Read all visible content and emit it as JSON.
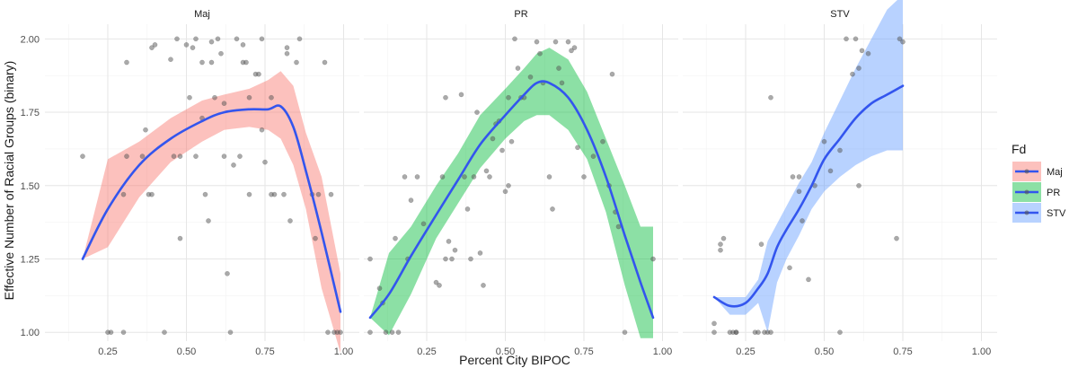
{
  "chart_data": {
    "type": "scatter",
    "xlabel": "Percent City BIPOC",
    "ylabel": "Effective Number of Racial Groups (binary)",
    "xlim": [
      0.05,
      1.05
    ],
    "ylim": [
      0.97,
      2.05
    ],
    "x_ticks": [
      "0.25",
      "0.50",
      "0.75",
      "1.00"
    ],
    "y_ticks": [
      "1.00",
      "1.25",
      "1.50",
      "1.75",
      "2.00"
    ],
    "x_tick_values": [
      0.25,
      0.5,
      0.75,
      1.0
    ],
    "y_tick_values": [
      1.0,
      1.25,
      1.5,
      1.75,
      2.0
    ],
    "grid": true,
    "legend": {
      "title": "Fd",
      "position": "right",
      "entries": [
        {
          "label": "Maj",
          "fill": "#F8766D",
          "line": "#3355EE"
        },
        {
          "label": "PR",
          "fill": "#00BA38",
          "line": "#3355EE"
        },
        {
          "label": "STV",
          "fill": "#619CFF",
          "line": "#3355EE"
        }
      ]
    },
    "point_color": "#555555",
    "smooth_color": "#3355EE",
    "panels": [
      {
        "strip": "Maj",
        "band_color": "#F8766D",
        "smooth": {
          "x": [
            0.17,
            0.25,
            0.35,
            0.45,
            0.55,
            0.62,
            0.7,
            0.76,
            0.8,
            0.84,
            0.88,
            0.93,
            0.99
          ],
          "y": [
            1.25,
            1.42,
            1.57,
            1.66,
            1.72,
            1.75,
            1.76,
            1.76,
            1.77,
            1.7,
            1.55,
            1.34,
            1.07
          ],
          "lower": [
            1.25,
            1.29,
            1.46,
            1.58,
            1.65,
            1.69,
            1.7,
            1.69,
            1.66,
            1.57,
            1.42,
            1.15,
            0.93
          ],
          "upper": [
            1.25,
            1.59,
            1.65,
            1.73,
            1.79,
            1.81,
            1.83,
            1.86,
            1.89,
            1.84,
            1.68,
            1.53,
            1.2
          ]
        },
        "points": [
          [
            0.17,
            1.6
          ],
          [
            0.25,
            1.0
          ],
          [
            0.26,
            1.0
          ],
          [
            0.3,
            1.47
          ],
          [
            0.3,
            1.0
          ],
          [
            0.31,
            1.92
          ],
          [
            0.31,
            1.6
          ],
          [
            0.36,
            1.6
          ],
          [
            0.37,
            1.69
          ],
          [
            0.38,
            1.47
          ],
          [
            0.39,
            1.97
          ],
          [
            0.39,
            1.47
          ],
          [
            0.4,
            1.98
          ],
          [
            0.43,
            1.0
          ],
          [
            0.45,
            1.93
          ],
          [
            0.46,
            1.6
          ],
          [
            0.47,
            2.0
          ],
          [
            0.48,
            1.6
          ],
          [
            0.48,
            1.32
          ],
          [
            0.5,
            1.98
          ],
          [
            0.51,
            1.8
          ],
          [
            0.52,
            1.97
          ],
          [
            0.53,
            1.6
          ],
          [
            0.53,
            2.0
          ],
          [
            0.55,
            1.73
          ],
          [
            0.55,
            1.92
          ],
          [
            0.56,
            1.47
          ],
          [
            0.57,
            1.38
          ],
          [
            0.58,
            1.92
          ],
          [
            0.58,
            1.99
          ],
          [
            0.59,
            1.8
          ],
          [
            0.6,
            2.0
          ],
          [
            0.61,
            1.95
          ],
          [
            0.62,
            1.78
          ],
          [
            0.62,
            1.6
          ],
          [
            0.63,
            1.2
          ],
          [
            0.64,
            1.0
          ],
          [
            0.65,
            1.57
          ],
          [
            0.66,
            2.0
          ],
          [
            0.67,
            1.6
          ],
          [
            0.68,
            1.92
          ],
          [
            0.68,
            1.98
          ],
          [
            0.69,
            1.92
          ],
          [
            0.7,
            1.47
          ],
          [
            0.7,
            1.8
          ],
          [
            0.72,
            1.88
          ],
          [
            0.73,
            1.88
          ],
          [
            0.74,
            1.69
          ],
          [
            0.74,
            2.0
          ],
          [
            0.75,
            1.58
          ],
          [
            0.77,
            1.47
          ],
          [
            0.77,
            1.8
          ],
          [
            0.78,
            1.47
          ],
          [
            0.81,
            1.47
          ],
          [
            0.82,
            1.97
          ],
          [
            0.82,
            1.95
          ],
          [
            0.83,
            1.38
          ],
          [
            0.85,
            1.92
          ],
          [
            0.86,
            2.0
          ],
          [
            0.9,
            1.47
          ],
          [
            0.91,
            1.32
          ],
          [
            0.92,
            1.47
          ],
          [
            0.94,
            1.92
          ],
          [
            0.95,
            1.0
          ],
          [
            0.96,
            1.47
          ],
          [
            0.97,
            1.0
          ],
          [
            0.98,
            1.0
          ],
          [
            0.99,
            1.0
          ]
        ]
      },
      {
        "strip": "PR",
        "band_color": "#00BA38",
        "smooth": {
          "x": [
            0.07,
            0.13,
            0.2,
            0.28,
            0.35,
            0.42,
            0.5,
            0.56,
            0.6,
            0.64,
            0.7,
            0.76,
            0.82,
            0.88,
            0.93,
            0.97
          ],
          "y": [
            1.05,
            1.13,
            1.26,
            1.4,
            1.52,
            1.64,
            1.74,
            1.81,
            1.85,
            1.85,
            1.8,
            1.69,
            1.53,
            1.33,
            1.17,
            1.05
          ],
          "lower": [
            1.05,
            0.99,
            1.13,
            1.32,
            1.44,
            1.56,
            1.66,
            1.72,
            1.74,
            1.74,
            1.69,
            1.59,
            1.41,
            1.16,
            0.98,
            0.98
          ],
          "upper": [
            1.05,
            1.27,
            1.36,
            1.5,
            1.61,
            1.74,
            1.83,
            1.9,
            1.95,
            1.97,
            1.93,
            1.82,
            1.66,
            1.5,
            1.36,
            1.36
          ]
        },
        "points": [
          [
            0.07,
            1.25
          ],
          [
            0.07,
            1.0
          ],
          [
            0.1,
            1.15
          ],
          [
            0.11,
            1.1
          ],
          [
            0.12,
            1.0
          ],
          [
            0.14,
            1.0
          ],
          [
            0.15,
            1.32
          ],
          [
            0.16,
            1.0
          ],
          [
            0.18,
            1.53
          ],
          [
            0.19,
            1.25
          ],
          [
            0.2,
            1.45
          ],
          [
            0.22,
            1.53
          ],
          [
            0.24,
            1.37
          ],
          [
            0.28,
            1.17
          ],
          [
            0.29,
            1.16
          ],
          [
            0.3,
            1.53
          ],
          [
            0.31,
            1.25
          ],
          [
            0.31,
            1.8
          ],
          [
            0.32,
            1.31
          ],
          [
            0.33,
            1.25
          ],
          [
            0.34,
            1.28
          ],
          [
            0.36,
            1.81
          ],
          [
            0.37,
            1.53
          ],
          [
            0.38,
            1.42
          ],
          [
            0.39,
            1.25
          ],
          [
            0.4,
            1.53
          ],
          [
            0.41,
            1.75
          ],
          [
            0.42,
            1.27
          ],
          [
            0.43,
            1.16
          ],
          [
            0.44,
            1.55
          ],
          [
            0.45,
            1.53
          ],
          [
            0.46,
            1.66
          ],
          [
            0.47,
            1.71
          ],
          [
            0.48,
            1.72
          ],
          [
            0.49,
            1.62
          ],
          [
            0.5,
            1.48
          ],
          [
            0.51,
            1.5
          ],
          [
            0.51,
            1.8
          ],
          [
            0.52,
            1.65
          ],
          [
            0.53,
            2.0
          ],
          [
            0.54,
            1.9
          ],
          [
            0.55,
            1.8
          ],
          [
            0.56,
            1.8
          ],
          [
            0.58,
            1.87
          ],
          [
            0.6,
            1.99
          ],
          [
            0.61,
            1.95
          ],
          [
            0.62,
            1.85
          ],
          [
            0.64,
            1.53
          ],
          [
            0.65,
            1.42
          ],
          [
            0.66,
            1.99
          ],
          [
            0.67,
            1.9
          ],
          [
            0.68,
            1.85
          ],
          [
            0.7,
            1.99
          ],
          [
            0.71,
            1.96
          ],
          [
            0.72,
            1.97
          ],
          [
            0.73,
            1.63
          ],
          [
            0.75,
            1.53
          ],
          [
            0.78,
            1.6
          ],
          [
            0.81,
            1.65
          ],
          [
            0.83,
            1.5
          ],
          [
            0.84,
            1.88
          ],
          [
            0.85,
            1.41
          ],
          [
            0.86,
            1.36
          ],
          [
            0.88,
            1.0
          ],
          [
            0.97,
            1.25
          ]
        ]
      },
      {
        "strip": "STV",
        "band_color": "#619CFF",
        "smooth": {
          "x": [
            0.15,
            0.2,
            0.25,
            0.29,
            0.32,
            0.35,
            0.38,
            0.42,
            0.46,
            0.5,
            0.55,
            0.6,
            0.65,
            0.7,
            0.75
          ],
          "y": [
            1.12,
            1.09,
            1.1,
            1.15,
            1.2,
            1.29,
            1.35,
            1.42,
            1.5,
            1.59,
            1.66,
            1.73,
            1.78,
            1.81,
            1.84
          ],
          "upper": [
            1.12,
            1.12,
            1.12,
            1.18,
            1.31,
            1.37,
            1.43,
            1.51,
            1.58,
            1.68,
            1.79,
            1.9,
            2.0,
            2.1,
            2.15
          ],
          "lower": [
            1.12,
            1.06,
            1.06,
            1.1,
            1.0,
            1.17,
            1.25,
            1.33,
            1.42,
            1.48,
            1.53,
            1.57,
            1.6,
            1.62,
            1.62
          ]
        },
        "points": [
          [
            0.15,
            1.0
          ],
          [
            0.15,
            1.03
          ],
          [
            0.17,
            1.3
          ],
          [
            0.17,
            1.28
          ],
          [
            0.18,
            1.32
          ],
          [
            0.2,
            1.0
          ],
          [
            0.21,
            1.0
          ],
          [
            0.22,
            1.0
          ],
          [
            0.22,
            1.0
          ],
          [
            0.28,
            1.0
          ],
          [
            0.29,
            1.0
          ],
          [
            0.3,
            1.3
          ],
          [
            0.31,
            1.0
          ],
          [
            0.32,
            1.0
          ],
          [
            0.33,
            1.8
          ],
          [
            0.33,
            1.0
          ],
          [
            0.39,
            1.22
          ],
          [
            0.4,
            1.53
          ],
          [
            0.42,
            1.48
          ],
          [
            0.42,
            1.53
          ],
          [
            0.43,
            1.38
          ],
          [
            0.45,
            1.18
          ],
          [
            0.47,
            1.5
          ],
          [
            0.5,
            1.65
          ],
          [
            0.52,
            1.55
          ],
          [
            0.55,
            1.0
          ],
          [
            0.55,
            1.62
          ],
          [
            0.57,
            2.0
          ],
          [
            0.59,
            1.88
          ],
          [
            0.6,
            2.0
          ],
          [
            0.61,
            1.9
          ],
          [
            0.61,
            1.5
          ],
          [
            0.62,
            1.96
          ],
          [
            0.64,
            1.95
          ],
          [
            0.73,
            1.32
          ],
          [
            0.74,
            2.0
          ],
          [
            0.75,
            1.99
          ]
        ]
      }
    ]
  }
}
